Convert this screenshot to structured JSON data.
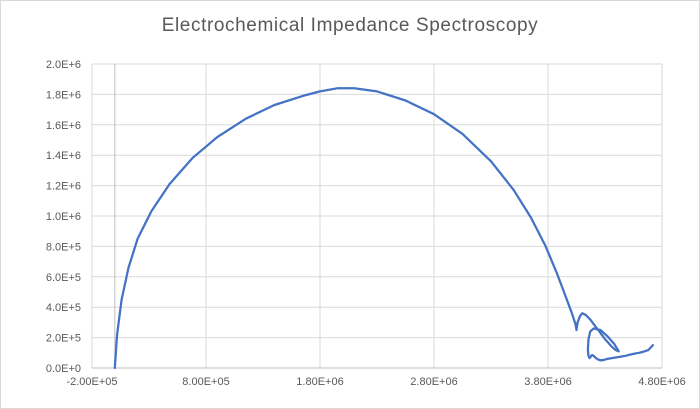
{
  "chart_data": {
    "type": "scatter",
    "title": "Electrochemical Impedance Spectroscopy",
    "xlabel": "",
    "ylabel": "",
    "xlim": [
      -200000,
      4800000
    ],
    "ylim": [
      0,
      2000000
    ],
    "x_ticks": [
      -200000,
      800000,
      1800000,
      2800000,
      3800000,
      4800000
    ],
    "x_tick_labels": [
      "-2.00E+05",
      "8.00E+05",
      "1.80E+06",
      "2.80E+06",
      "3.80E+06",
      "4.80E+06"
    ],
    "y_ticks": [
      0,
      200000,
      400000,
      600000,
      800000,
      1000000,
      1200000,
      1400000,
      1600000,
      1800000,
      2000000
    ],
    "y_tick_labels": [
      "0.0E+0",
      "2.0E+5",
      "4.0E+5",
      "6.0E+5",
      "8.0E+5",
      "1.0E+6",
      "1.2E+6",
      "1.4E+6",
      "1.6E+6",
      "1.8E+6",
      "2.0E+6"
    ],
    "grid": true,
    "series": [
      {
        "color": "#4472c4",
        "x": [
          0,
          20000,
          60000,
          120000,
          200000,
          320000,
          480000,
          680000,
          900000,
          1150000,
          1400000,
          1650000,
          1800000,
          1950000,
          2100000,
          2300000,
          2550000,
          2800000,
          3050000,
          3300000,
          3500000,
          3650000,
          3780000,
          3880000,
          3950000,
          4010000,
          4040000,
          4050000,
          4060000,
          4080000,
          4100000,
          4130000,
          4170000,
          4210000,
          4240000,
          4270000,
          4300000,
          4330000,
          4360000,
          4390000,
          4420000,
          4380000,
          4320000,
          4260000,
          4200000,
          4170000,
          4155000,
          4150000,
          4155000,
          4165000,
          4175000,
          4185000,
          4200000,
          4220000,
          4240000,
          4270000,
          4300000,
          4320000,
          4360000,
          4400000,
          4440000,
          4480000,
          4520000,
          4560000,
          4600000,
          4640000,
          4680000,
          4720000
        ],
        "y": [
          0,
          220000,
          450000,
          660000,
          850000,
          1030000,
          1210000,
          1380000,
          1520000,
          1640000,
          1730000,
          1790000,
          1820000,
          1840000,
          1840000,
          1820000,
          1760000,
          1670000,
          1540000,
          1360000,
          1170000,
          990000,
          800000,
          620000,
          480000,
          360000,
          290000,
          250000,
          300000,
          340000,
          360000,
          350000,
          320000,
          280000,
          250000,
          220000,
          190000,
          165000,
          140000,
          120000,
          110000,
          160000,
          210000,
          250000,
          260000,
          240000,
          190000,
          120000,
          80000,
          65000,
          75000,
          85000,
          80000,
          65000,
          55000,
          50000,
          55000,
          60000,
          65000,
          70000,
          75000,
          80000,
          88000,
          95000,
          100000,
          108000,
          118000,
          150000
        ]
      }
    ]
  }
}
